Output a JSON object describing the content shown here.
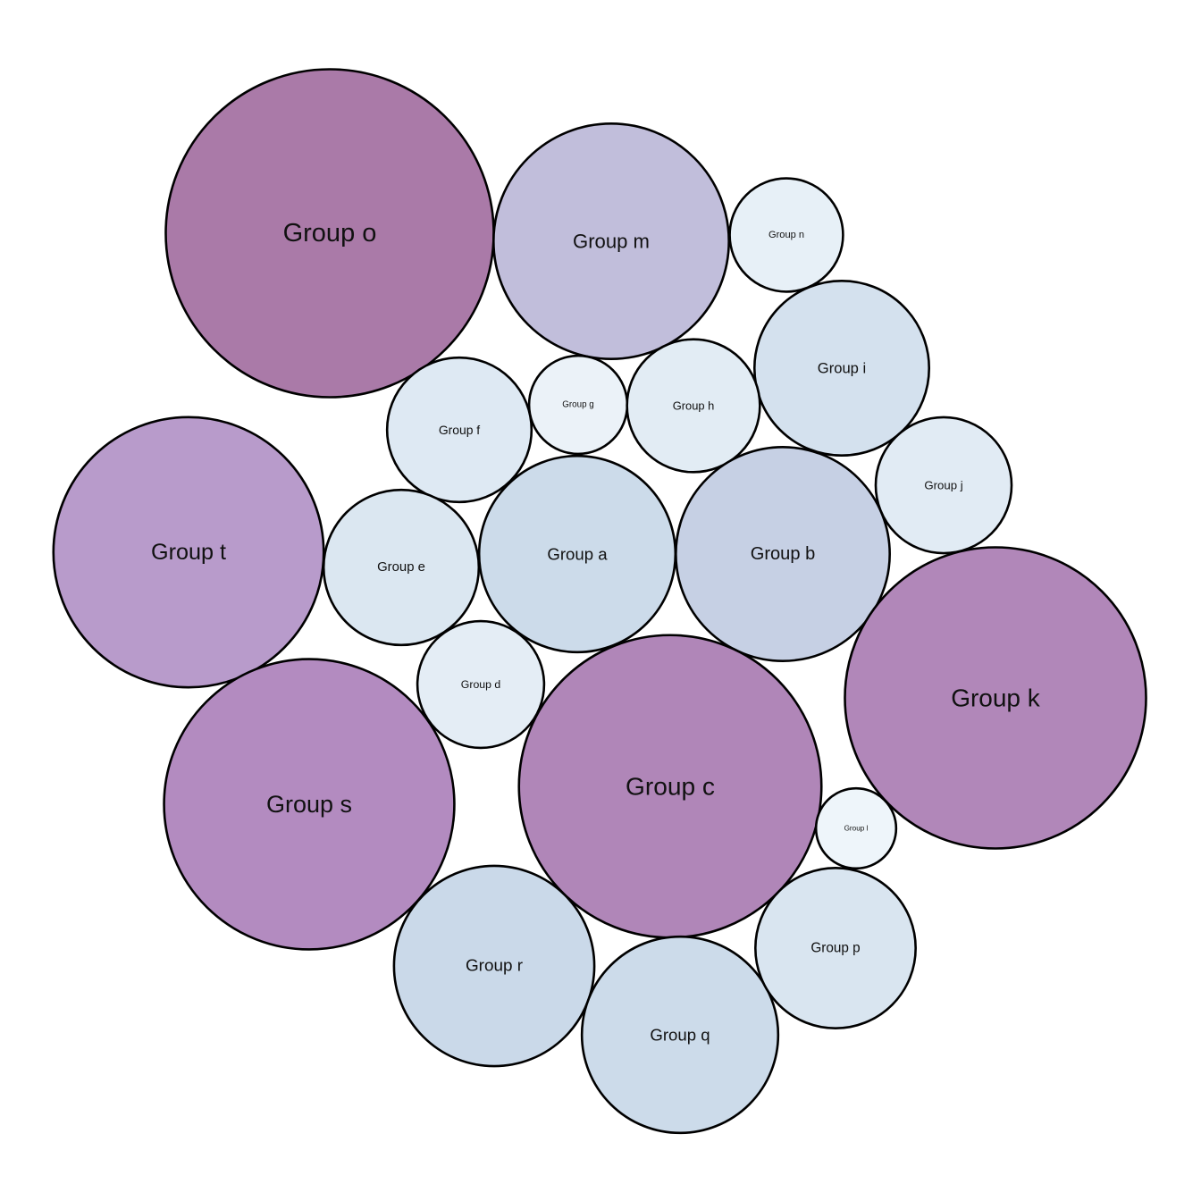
{
  "chart_data": {
    "type": "packed-bubble",
    "title": "",
    "color_scale": [
      "#eef5fa",
      "#c8d8e8",
      "#b58fc5",
      "#aa7aa8"
    ],
    "bubbles": [
      {
        "label": "Group o",
        "value": 134
      },
      {
        "label": "Group m",
        "value": 69
      },
      {
        "label": "Group n",
        "value": 16
      },
      {
        "label": "Group i",
        "value": 38
      },
      {
        "label": "Group f",
        "value": 26
      },
      {
        "label": "Group g",
        "value": 12
      },
      {
        "label": "Group h",
        "value": 22
      },
      {
        "label": "Group t",
        "value": 91
      },
      {
        "label": "Group e",
        "value": 30
      },
      {
        "label": "Group a",
        "value": 48
      },
      {
        "label": "Group b",
        "value": 57
      },
      {
        "label": "Group j",
        "value": 23
      },
      {
        "label": "Group k",
        "value": 113
      },
      {
        "label": "Group d",
        "value": 20
      },
      {
        "label": "Group s",
        "value": 105
      },
      {
        "label": "Group c",
        "value": 114
      },
      {
        "label": "Group l",
        "value": 8
      },
      {
        "label": "Group r",
        "value": 50
      },
      {
        "label": "Group q",
        "value": 48
      },
      {
        "label": "Group p",
        "value": 32
      }
    ]
  }
}
